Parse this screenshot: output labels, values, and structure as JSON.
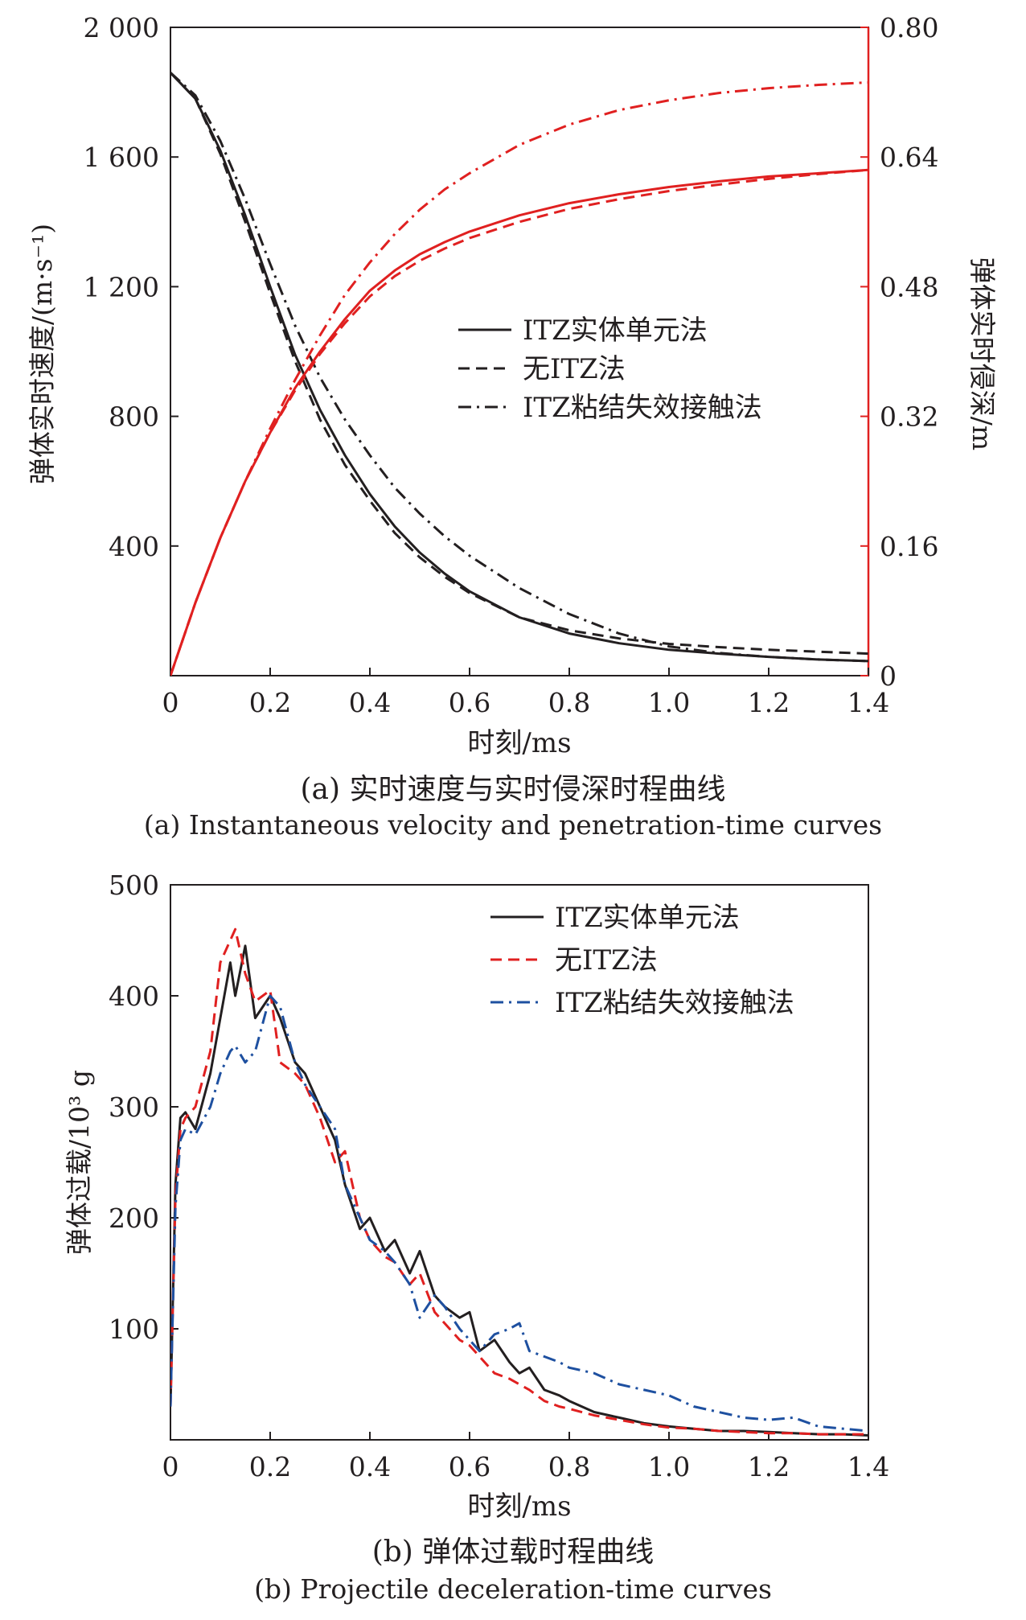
{
  "chart_data": [
    {
      "type": "line",
      "panel": "a",
      "caption_zh": "(a) 实时速度与实时侵深时程曲线",
      "caption_en": "(a) Instantaneous velocity and penetration-time curves",
      "xlabel": "时刻/ms",
      "ylabel_left": "弹体实时速度/(m·s⁻¹)",
      "ylabel_right": "弹体实时侵深/m",
      "xlim": [
        0,
        1.4
      ],
      "ylim_left": [
        0,
        2000
      ],
      "ylim_right": [
        0,
        0.8
      ],
      "x_ticks": [
        "0",
        "0.2",
        "0.4",
        "0.6",
        "0.8",
        "1.0",
        "1.2",
        "1.4"
      ],
      "y_ticks_left": [
        "400",
        "800",
        "1 200",
        "1 600",
        "2 000"
      ],
      "y_ticks_right": [
        "0",
        "0.16",
        "0.32",
        "0.48",
        "0.64",
        "0.80"
      ],
      "legend": [
        "ITZ实体单元法",
        "无ITZ法",
        "ITZ粘结失效接触法"
      ],
      "legend_position": "center-right",
      "colors": {
        "velocity": "#231f20",
        "penetration": "#e02020"
      },
      "series": [
        {
          "name": "ITZ实体单元法",
          "axis": "left",
          "style": "solid",
          "x": [
            0,
            0.05,
            0.1,
            0.15,
            0.2,
            0.25,
            0.3,
            0.35,
            0.4,
            0.45,
            0.5,
            0.55,
            0.6,
            0.7,
            0.8,
            0.9,
            1.0,
            1.1,
            1.2,
            1.3,
            1.4
          ],
          "values": [
            1860,
            1780,
            1620,
            1420,
            1200,
            990,
            820,
            680,
            560,
            460,
            380,
            315,
            260,
            180,
            130,
            100,
            80,
            68,
            58,
            50,
            45
          ]
        },
        {
          "name": "无ITZ法",
          "axis": "left",
          "style": "dashed",
          "x": [
            0,
            0.05,
            0.1,
            0.15,
            0.2,
            0.25,
            0.3,
            0.35,
            0.4,
            0.45,
            0.5,
            0.55,
            0.6,
            0.7,
            0.8,
            0.9,
            1.0,
            1.1,
            1.2,
            1.3,
            1.4
          ],
          "values": [
            1860,
            1780,
            1610,
            1400,
            1180,
            970,
            790,
            650,
            540,
            440,
            365,
            305,
            255,
            180,
            140,
            115,
            98,
            88,
            80,
            74,
            68
          ]
        },
        {
          "name": "ITZ粘结失效接触法",
          "axis": "left",
          "style": "dashdot",
          "x": [
            0,
            0.05,
            0.1,
            0.15,
            0.2,
            0.25,
            0.3,
            0.35,
            0.4,
            0.45,
            0.5,
            0.55,
            0.6,
            0.7,
            0.8,
            0.9,
            1.0,
            1.1,
            1.2,
            1.3,
            1.4
          ],
          "values": [
            1860,
            1790,
            1650,
            1470,
            1270,
            1080,
            920,
            790,
            680,
            580,
            500,
            430,
            370,
            270,
            190,
            130,
            90,
            70,
            58,
            50,
            45
          ]
        },
        {
          "name": "ITZ实体单元法",
          "axis": "right",
          "style": "solid",
          "x": [
            0,
            0.05,
            0.1,
            0.15,
            0.2,
            0.25,
            0.3,
            0.35,
            0.4,
            0.45,
            0.5,
            0.55,
            0.6,
            0.7,
            0.8,
            0.9,
            1.0,
            1.1,
            1.2,
            1.3,
            1.4
          ],
          "values": [
            0,
            0.09,
            0.17,
            0.24,
            0.3,
            0.355,
            0.4,
            0.44,
            0.475,
            0.5,
            0.52,
            0.535,
            0.548,
            0.568,
            0.583,
            0.594,
            0.603,
            0.61,
            0.616,
            0.62,
            0.624
          ]
        },
        {
          "name": "无ITZ法",
          "axis": "right",
          "style": "dashed",
          "x": [
            0,
            0.05,
            0.1,
            0.15,
            0.2,
            0.25,
            0.3,
            0.35,
            0.4,
            0.45,
            0.5,
            0.55,
            0.6,
            0.7,
            0.8,
            0.9,
            1.0,
            1.1,
            1.2,
            1.3,
            1.4
          ],
          "values": [
            0,
            0.09,
            0.17,
            0.24,
            0.3,
            0.352,
            0.397,
            0.435,
            0.468,
            0.493,
            0.512,
            0.527,
            0.54,
            0.56,
            0.576,
            0.588,
            0.598,
            0.606,
            0.613,
            0.619,
            0.624
          ]
        },
        {
          "name": "ITZ粘结失效接触法",
          "axis": "right",
          "style": "dashdot",
          "x": [
            0,
            0.05,
            0.1,
            0.15,
            0.2,
            0.25,
            0.3,
            0.35,
            0.4,
            0.45,
            0.5,
            0.55,
            0.6,
            0.7,
            0.8,
            0.9,
            1.0,
            1.1,
            1.2,
            1.3,
            1.4
          ],
          "values": [
            0,
            0.09,
            0.17,
            0.24,
            0.305,
            0.365,
            0.42,
            0.47,
            0.51,
            0.545,
            0.575,
            0.6,
            0.62,
            0.655,
            0.68,
            0.698,
            0.71,
            0.719,
            0.725,
            0.729,
            0.732
          ]
        }
      ]
    },
    {
      "type": "line",
      "panel": "b",
      "caption_zh": "(b) 弹体过载时程曲线",
      "caption_en": "(b) Projectile deceleration-time curves",
      "xlabel": "时刻/ms",
      "ylabel": "弹体过载/10³ g",
      "xlim": [
        0,
        1.4
      ],
      "ylim": [
        0,
        500
      ],
      "x_ticks": [
        "0",
        "0.2",
        "0.4",
        "0.6",
        "0.8",
        "1.0",
        "1.2",
        "1.4"
      ],
      "y_ticks": [
        "100",
        "200",
        "300",
        "400",
        "500"
      ],
      "legend": [
        "ITZ实体单元法",
        "无ITZ法",
        "ITZ粘结失效接触法"
      ],
      "legend_position": "top-right",
      "colors": {
        "ITZ实体单元法": "#231f20",
        "无ITZ法": "#e02020",
        "ITZ粘结失效接触法": "#1e50a0"
      },
      "series": [
        {
          "name": "ITZ实体单元法",
          "style": "solid",
          "x": [
            0,
            0.01,
            0.02,
            0.03,
            0.05,
            0.08,
            0.1,
            0.12,
            0.13,
            0.15,
            0.17,
            0.2,
            0.22,
            0.25,
            0.27,
            0.3,
            0.33,
            0.35,
            0.38,
            0.4,
            0.43,
            0.45,
            0.48,
            0.5,
            0.53,
            0.55,
            0.58,
            0.6,
            0.62,
            0.65,
            0.68,
            0.7,
            0.72,
            0.75,
            0.78,
            0.8,
            0.85,
            0.9,
            0.95,
            1.0,
            1.05,
            1.1,
            1.15,
            1.2,
            1.25,
            1.3,
            1.35,
            1.4
          ],
          "values": [
            30,
            230,
            290,
            295,
            280,
            330,
            380,
            430,
            400,
            445,
            380,
            400,
            380,
            340,
            330,
            300,
            270,
            230,
            190,
            200,
            170,
            180,
            150,
            170,
            130,
            120,
            110,
            115,
            80,
            90,
            70,
            60,
            65,
            45,
            40,
            35,
            25,
            20,
            15,
            12,
            10,
            8,
            8,
            7,
            6,
            5,
            5,
            4
          ]
        },
        {
          "name": "无ITZ法",
          "style": "dashed",
          "x": [
            0,
            0.01,
            0.02,
            0.03,
            0.05,
            0.08,
            0.1,
            0.12,
            0.13,
            0.15,
            0.17,
            0.2,
            0.22,
            0.25,
            0.27,
            0.3,
            0.33,
            0.35,
            0.38,
            0.4,
            0.43,
            0.45,
            0.48,
            0.5,
            0.53,
            0.55,
            0.58,
            0.6,
            0.62,
            0.65,
            0.68,
            0.7,
            0.72,
            0.75,
            0.78,
            0.8,
            0.85,
            0.9,
            0.95,
            1.0,
            1.05,
            1.1,
            1.15,
            1.2,
            1.25,
            1.3,
            1.35,
            1.4
          ],
          "values": [
            30,
            220,
            280,
            290,
            300,
            350,
            430,
            450,
            460,
            420,
            395,
            405,
            340,
            330,
            320,
            290,
            250,
            260,
            200,
            180,
            165,
            160,
            140,
            150,
            115,
            105,
            90,
            85,
            75,
            60,
            55,
            50,
            45,
            35,
            30,
            28,
            22,
            18,
            14,
            11,
            10,
            8,
            7,
            6,
            6,
            5,
            5,
            5
          ]
        },
        {
          "name": "ITZ粘结失效接触法",
          "style": "dashdot",
          "x": [
            0,
            0.01,
            0.02,
            0.03,
            0.05,
            0.08,
            0.1,
            0.12,
            0.13,
            0.15,
            0.17,
            0.2,
            0.22,
            0.25,
            0.27,
            0.3,
            0.33,
            0.35,
            0.38,
            0.4,
            0.43,
            0.45,
            0.48,
            0.5,
            0.53,
            0.55,
            0.58,
            0.6,
            0.62,
            0.65,
            0.68,
            0.7,
            0.72,
            0.75,
            0.78,
            0.8,
            0.85,
            0.9,
            0.95,
            1.0,
            1.05,
            1.1,
            1.15,
            1.2,
            1.25,
            1.3,
            1.35,
            1.4
          ],
          "values": [
            30,
            210,
            270,
            280,
            275,
            300,
            330,
            350,
            355,
            340,
            350,
            400,
            390,
            340,
            320,
            300,
            280,
            230,
            200,
            180,
            170,
            160,
            140,
            110,
            130,
            120,
            100,
            90,
            80,
            95,
            100,
            105,
            80,
            75,
            70,
            65,
            60,
            50,
            45,
            40,
            30,
            25,
            20,
            18,
            20,
            12,
            10,
            8
          ]
        }
      ]
    }
  ]
}
